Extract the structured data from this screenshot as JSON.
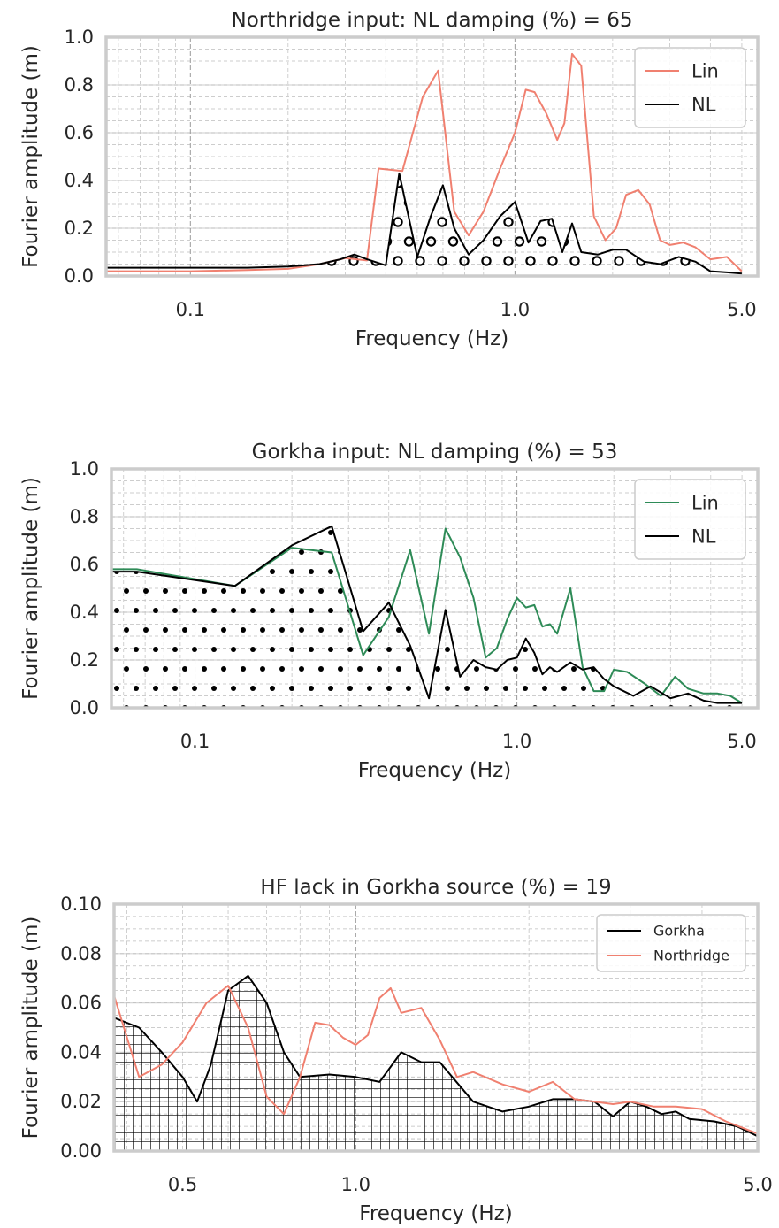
{
  "chart_data": [
    {
      "type": "line",
      "title": "Northridge input: NL damping (%) = 65",
      "xlabel": "Frequency (Hz)",
      "ylabel": "Fourier amplitude (m)",
      "xscale": "log",
      "xlim": [
        0.055,
        5.6
      ],
      "ylim": [
        0.0,
        1.0
      ],
      "xticks": [
        0.1,
        1.0,
        5.0
      ],
      "xtick_labels": [
        "0.1",
        "1.0",
        "5.0"
      ],
      "yticks": [
        0.0,
        0.2,
        0.4,
        0.6,
        0.8,
        1.0
      ],
      "ytick_labels": [
        "0.0",
        "0.2",
        "0.4",
        "0.6",
        "0.8",
        "1.0"
      ],
      "grid": true,
      "legend_position": "top-right",
      "fill_hatch": "circles",
      "fill_series": "NL",
      "colors": {
        "Lin": "#f08070",
        "NL": "#000000"
      },
      "series": [
        {
          "name": "Lin",
          "color": "#f08070",
          "x": [
            0.055,
            0.1,
            0.15,
            0.2,
            0.25,
            0.3,
            0.35,
            0.38,
            0.45,
            0.52,
            0.58,
            0.65,
            0.72,
            0.8,
            0.9,
            1.0,
            1.08,
            1.15,
            1.25,
            1.35,
            1.42,
            1.5,
            1.6,
            1.75,
            1.9,
            2.05,
            2.2,
            2.4,
            2.6,
            2.8,
            3.0,
            3.3,
            3.6,
            4.0,
            4.5,
            5.0
          ],
          "y": [
            0.02,
            0.02,
            0.025,
            0.03,
            0.05,
            0.075,
            0.065,
            0.45,
            0.44,
            0.75,
            0.86,
            0.27,
            0.17,
            0.27,
            0.45,
            0.6,
            0.78,
            0.77,
            0.68,
            0.57,
            0.64,
            0.93,
            0.88,
            0.25,
            0.15,
            0.2,
            0.34,
            0.36,
            0.3,
            0.15,
            0.13,
            0.14,
            0.12,
            0.07,
            0.08,
            0.02
          ]
        },
        {
          "name": "NL",
          "color": "#000000",
          "x": [
            0.055,
            0.1,
            0.15,
            0.2,
            0.25,
            0.29,
            0.32,
            0.35,
            0.4,
            0.44,
            0.5,
            0.55,
            0.6,
            0.65,
            0.72,
            0.8,
            0.9,
            1.0,
            1.1,
            1.2,
            1.3,
            1.4,
            1.5,
            1.6,
            1.8,
            2.0,
            2.2,
            2.5,
            2.8,
            3.2,
            3.6,
            4.0,
            4.5,
            5.0
          ],
          "y": [
            0.035,
            0.035,
            0.035,
            0.04,
            0.05,
            0.07,
            0.09,
            0.07,
            0.045,
            0.43,
            0.08,
            0.25,
            0.38,
            0.2,
            0.09,
            0.15,
            0.25,
            0.31,
            0.14,
            0.23,
            0.24,
            0.1,
            0.22,
            0.1,
            0.09,
            0.11,
            0.11,
            0.06,
            0.05,
            0.08,
            0.06,
            0.02,
            0.015,
            0.01
          ]
        }
      ]
    },
    {
      "type": "line",
      "title": "Gorkha input: NL damping (%) = 53",
      "xlabel": "Frequency (Hz)",
      "ylabel": "Fourier amplitude (m)",
      "xscale": "log",
      "xlim": [
        0.055,
        5.6
      ],
      "ylim": [
        0.0,
        1.0
      ],
      "xticks": [
        0.1,
        1.0,
        5.0
      ],
      "xtick_labels": [
        "0.1",
        "1.0",
        "5.0"
      ],
      "yticks": [
        0.0,
        0.2,
        0.4,
        0.6,
        0.8,
        1.0
      ],
      "ytick_labels": [
        "0.0",
        "0.2",
        "0.4",
        "0.6",
        "0.8",
        "1.0"
      ],
      "grid": true,
      "legend_position": "top-right",
      "fill_hatch": "dots",
      "fill_series": "NL",
      "colors": {
        "Lin": "#2e8b57",
        "NL": "#000000"
      },
      "series": [
        {
          "name": "Lin",
          "color": "#2e8b57",
          "x": [
            0.055,
            0.066,
            0.133,
            0.2,
            0.266,
            0.333,
            0.4,
            0.466,
            0.533,
            0.6,
            0.666,
            0.733,
            0.8,
            0.866,
            0.933,
            1.0,
            1.066,
            1.133,
            1.2,
            1.266,
            1.333,
            1.466,
            1.6,
            1.733,
            1.866,
            2.0,
            2.2,
            2.5,
            2.8,
            3.1,
            3.4,
            3.8,
            4.2,
            4.6,
            5.0
          ],
          "y": [
            0.58,
            0.58,
            0.51,
            0.67,
            0.65,
            0.22,
            0.38,
            0.66,
            0.31,
            0.75,
            0.63,
            0.46,
            0.21,
            0.25,
            0.37,
            0.46,
            0.42,
            0.43,
            0.34,
            0.35,
            0.31,
            0.5,
            0.17,
            0.07,
            0.07,
            0.16,
            0.15,
            0.1,
            0.05,
            0.13,
            0.08,
            0.06,
            0.06,
            0.05,
            0.02
          ]
        },
        {
          "name": "NL",
          "color": "#000000",
          "x": [
            0.055,
            0.066,
            0.133,
            0.2,
            0.266,
            0.333,
            0.4,
            0.466,
            0.533,
            0.6,
            0.666,
            0.733,
            0.8,
            0.866,
            0.933,
            1.0,
            1.066,
            1.133,
            1.2,
            1.266,
            1.333,
            1.466,
            1.6,
            1.733,
            1.866,
            2.0,
            2.3,
            2.6,
            3.0,
            3.4,
            3.8,
            4.2,
            4.6,
            5.0
          ],
          "y": [
            0.57,
            0.57,
            0.51,
            0.68,
            0.76,
            0.32,
            0.44,
            0.26,
            0.04,
            0.41,
            0.13,
            0.2,
            0.17,
            0.16,
            0.2,
            0.21,
            0.29,
            0.23,
            0.14,
            0.17,
            0.15,
            0.19,
            0.16,
            0.17,
            0.12,
            0.09,
            0.05,
            0.09,
            0.04,
            0.06,
            0.03,
            0.02,
            0.02,
            0.02
          ]
        }
      ]
    },
    {
      "type": "line",
      "title": "HF lack in Gorkha source (%) = 19",
      "xlabel": "Frequency (Hz)",
      "ylabel": "Fourier amplitude (m)",
      "xscale": "log",
      "xlim": [
        0.38,
        5.0
      ],
      "ylim": [
        0.0,
        0.1
      ],
      "xticks": [
        0.5,
        1.0,
        5.0
      ],
      "xtick_labels": [
        "0.5",
        "1.0",
        "5.0"
      ],
      "yticks": [
        0.0,
        0.02,
        0.04,
        0.06,
        0.08,
        0.1
      ],
      "ytick_labels": [
        "0.00",
        "0.02",
        "0.04",
        "0.06",
        "0.08",
        "0.10"
      ],
      "grid": true,
      "legend_position": "top-right",
      "fill_hatch": "grid",
      "fill_series": "Gorkha",
      "colors": {
        "Gorkha": "#000000",
        "Northridge": "#f08070"
      },
      "series": [
        {
          "name": "Gorkha",
          "color": "#000000",
          "x": [
            0.38,
            0.42,
            0.46,
            0.5,
            0.53,
            0.56,
            0.6,
            0.65,
            0.7,
            0.75,
            0.8,
            0.9,
            1.0,
            1.1,
            1.2,
            1.3,
            1.4,
            1.6,
            1.8,
            2.0,
            2.2,
            2.4,
            2.6,
            2.8,
            3.0,
            3.2,
            3.4,
            3.6,
            3.8,
            4.2,
            4.6,
            5.0
          ],
          "y": [
            0.054,
            0.05,
            0.04,
            0.03,
            0.02,
            0.035,
            0.065,
            0.071,
            0.06,
            0.04,
            0.03,
            0.031,
            0.03,
            0.028,
            0.04,
            0.036,
            0.036,
            0.02,
            0.016,
            0.018,
            0.021,
            0.021,
            0.02,
            0.014,
            0.02,
            0.018,
            0.015,
            0.016,
            0.013,
            0.012,
            0.01,
            0.006
          ]
        },
        {
          "name": "Northridge",
          "color": "#f08070",
          "x": [
            0.38,
            0.42,
            0.46,
            0.5,
            0.55,
            0.6,
            0.65,
            0.7,
            0.75,
            0.8,
            0.85,
            0.9,
            0.95,
            1.0,
            1.05,
            1.1,
            1.15,
            1.2,
            1.3,
            1.4,
            1.5,
            1.6,
            1.8,
            2.0,
            2.2,
            2.4,
            2.6,
            2.8,
            3.0,
            3.3,
            3.6,
            4.0,
            4.4,
            5.0
          ],
          "y": [
            0.063,
            0.03,
            0.035,
            0.044,
            0.06,
            0.067,
            0.05,
            0.022,
            0.015,
            0.03,
            0.052,
            0.051,
            0.046,
            0.043,
            0.047,
            0.062,
            0.066,
            0.056,
            0.058,
            0.045,
            0.03,
            0.032,
            0.027,
            0.024,
            0.028,
            0.021,
            0.02,
            0.019,
            0.02,
            0.018,
            0.018,
            0.017,
            0.012,
            0.007
          ]
        }
      ]
    }
  ]
}
